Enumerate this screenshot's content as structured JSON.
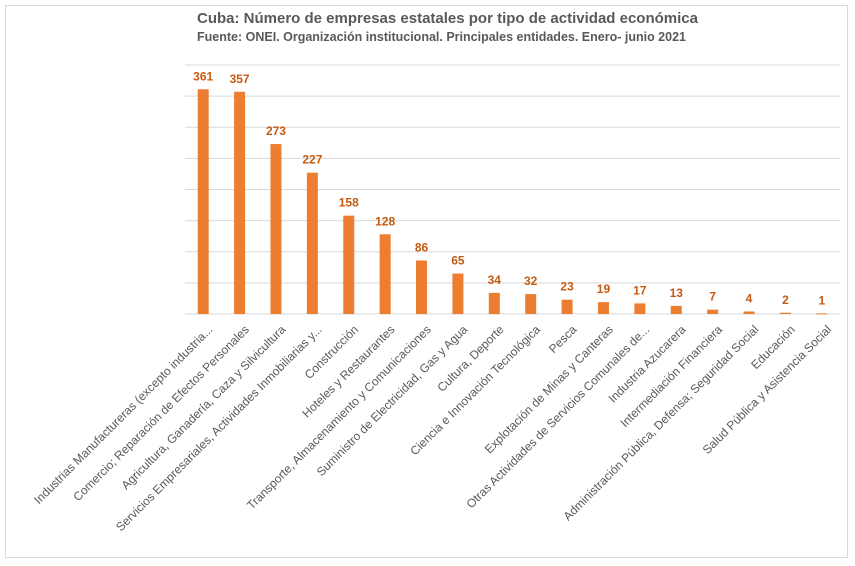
{
  "chart_data": {
    "type": "bar",
    "title": "Cuba: Número de empresas estatales por tipo de actividad económica",
    "subtitle": "Fuente: ONEI. Organización institucional. Principales entidades. Enero- junio 2021",
    "xlabel": "",
    "ylabel": "",
    "ylim": [
      0,
      400
    ],
    "grid": true,
    "categories": [
      "Industrias Manufactureras (excepto industria...",
      "Comercio; Reparación de Efectos Personales",
      "Agricultura, Ganadería, Caza y Silvicultura",
      "Servicios Empresariales, Actividades Inmobiliarias y...",
      "Construcción",
      "Hoteles y Restaurantes",
      "Transporte, Almacenamiento y Comunicaciones",
      "Suministro de Electricidad, Gas y Agua",
      "Cultura, Deporte",
      "Ciencia e Innovación Tecnológica",
      "Pesca",
      "Explotación de Minas y Canteras",
      "Otras  Actividades de Servicios Comunales  de...",
      "Industria Azucarera",
      "Intermediación Financiera",
      "Administración Pública, Defensa; Seguridad Social",
      "Educación",
      "Salud Pública y Asistencia Social"
    ],
    "values": [
      361,
      357,
      273,
      227,
      158,
      128,
      86,
      65,
      34,
      32,
      23,
      19,
      17,
      13,
      7,
      4,
      2,
      1
    ],
    "colors": {
      "bar": "#ed7d31",
      "label": "#c55a11"
    }
  }
}
